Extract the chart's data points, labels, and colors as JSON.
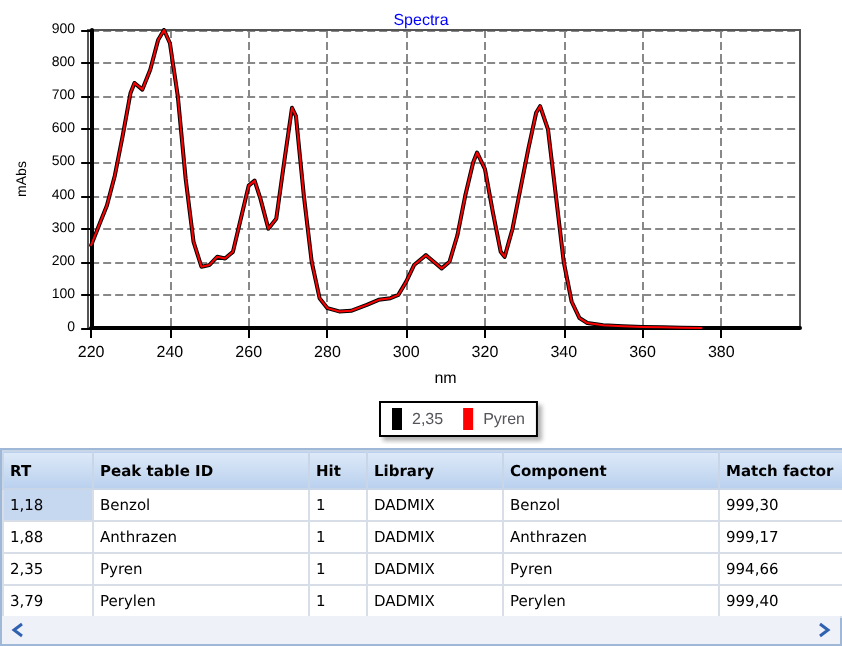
{
  "chart_data": [
    {
      "type": "line",
      "title": "Spectra",
      "xlabel": "nm",
      "ylabel": "mAbs",
      "xlim": [
        220,
        400
      ],
      "xticks": [
        220,
        240,
        260,
        280,
        300,
        320,
        340,
        360,
        380
      ],
      "ylim": [
        0,
        900
      ],
      "yticks": [
        0,
        100,
        200,
        300,
        400,
        500,
        600,
        700,
        800,
        900
      ],
      "grid": true,
      "legend": "bottom",
      "marker": "none",
      "line_style": "solid",
      "x": [
        220,
        222,
        224,
        226,
        228,
        230,
        231,
        233,
        235,
        237,
        238.5,
        240,
        242,
        244,
        246,
        248,
        250,
        252,
        254,
        256,
        258,
        260,
        261.5,
        263,
        265,
        267,
        269,
        271,
        272,
        274,
        276,
        278,
        280,
        283,
        286,
        290,
        293,
        296,
        298,
        300,
        302,
        305,
        307,
        309,
        311,
        313,
        315,
        317,
        318,
        320,
        322,
        324,
        325,
        327,
        329,
        331,
        333,
        334,
        336,
        338,
        340,
        342,
        344,
        346,
        350,
        355,
        360,
        365,
        370,
        375
      ],
      "series": [
        {
          "name": "2,35",
          "color": "#000000",
          "values": [
            250,
            310,
            370,
            460,
            580,
            710,
            740,
            720,
            780,
            870,
            900,
            860,
            700,
            450,
            260,
            185,
            190,
            215,
            210,
            230,
            330,
            430,
            445,
            390,
            300,
            330,
            500,
            665,
            640,
            400,
            200,
            90,
            60,
            50,
            52,
            70,
            85,
            90,
            100,
            140,
            190,
            220,
            200,
            180,
            200,
            280,
            400,
            500,
            530,
            480,
            350,
            230,
            215,
            300,
            420,
            540,
            650,
            670,
            600,
            400,
            200,
            80,
            30,
            15,
            8,
            5,
            3,
            2,
            1,
            0
          ]
        },
        {
          "name": "Pyren",
          "color": "#ff0000",
          "values": [
            250,
            310,
            370,
            460,
            580,
            710,
            740,
            720,
            780,
            870,
            900,
            860,
            700,
            450,
            260,
            185,
            190,
            215,
            210,
            230,
            330,
            430,
            445,
            390,
            300,
            330,
            500,
            665,
            640,
            400,
            200,
            90,
            60,
            50,
            52,
            70,
            85,
            90,
            100,
            140,
            190,
            220,
            200,
            180,
            200,
            280,
            400,
            500,
            530,
            480,
            350,
            230,
            215,
            300,
            420,
            540,
            650,
            670,
            600,
            400,
            200,
            80,
            30,
            15,
            8,
            5,
            3,
            2,
            1,
            0
          ]
        }
      ]
    },
    {
      "type": "other",
      "categories": [
        "RT",
        "Peak table ID",
        "Hit",
        "Library",
        "Component",
        "Match factor"
      ],
      "annotations": [
        "1,18",
        "Benzol",
        "1",
        "DADMIX",
        "Benzol",
        "999,30",
        "1,88",
        "Anthrazen",
        "1",
        "DADMIX",
        "Anthrazen",
        "999,17",
        "2,35",
        "Pyren",
        "1",
        "DADMIX",
        "Pyren",
        "994,66",
        "3,79",
        "Perylen",
        "1",
        "DADMIX",
        "Perylen",
        "999,40"
      ]
    }
  ]
}
